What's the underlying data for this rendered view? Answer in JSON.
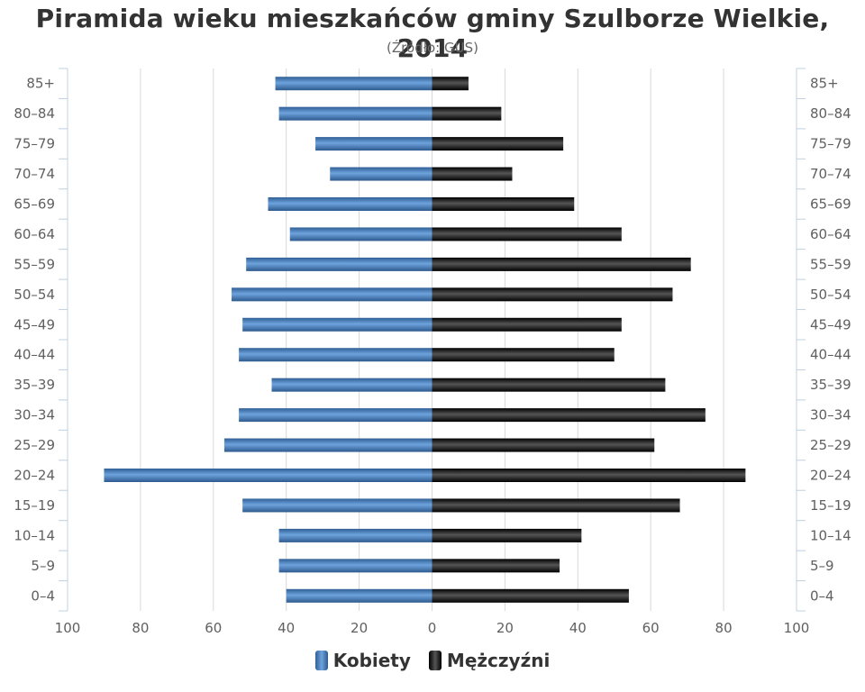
{
  "chart_data": {
    "type": "bar",
    "orientation": "horizontal",
    "title": "Piramida wieku mieszkańców gminy Szulborze Wielkie, 2014",
    "subtitle": "(Źródło: GUS)",
    "categories": [
      "0-4",
      "5-9",
      "10-14",
      "15-19",
      "20-24",
      "25-29",
      "30-34",
      "35-39",
      "40-44",
      "45-49",
      "50-54",
      "55-59",
      "60-64",
      "65-69",
      "70-74",
      "75-79",
      "80-84",
      "85+"
    ],
    "category_labels": [
      "0–4",
      "5–9",
      "10–14",
      "15–19",
      "20–24",
      "25–29",
      "30–34",
      "35–39",
      "40–44",
      "45–49",
      "50–54",
      "55–59",
      "60–64",
      "65–69",
      "70–74",
      "75–79",
      "80–84",
      "85+"
    ],
    "series": [
      {
        "name": "Kobiety",
        "color": "#4a86c8",
        "side": "left",
        "values": [
          40,
          42,
          42,
          52,
          90,
          57,
          53,
          44,
          53,
          52,
          55,
          51,
          39,
          45,
          28,
          32,
          42,
          43
        ]
      },
      {
        "name": "Mężczyźni",
        "color": "#111111",
        "side": "right",
        "values": [
          54,
          35,
          41,
          68,
          86,
          61,
          75,
          64,
          50,
          52,
          66,
          71,
          52,
          39,
          22,
          36,
          19,
          10
        ]
      }
    ],
    "xlim": [
      -100,
      100
    ],
    "x_ticks": [
      -100,
      -80,
      -60,
      -40,
      -20,
      0,
      20,
      40,
      60,
      80,
      100
    ],
    "x_tick_labels": [
      "100",
      "80",
      "60",
      "40",
      "20",
      "0",
      "20",
      "40",
      "60",
      "80",
      "100"
    ],
    "grid": true,
    "legend": "bottom-center"
  }
}
